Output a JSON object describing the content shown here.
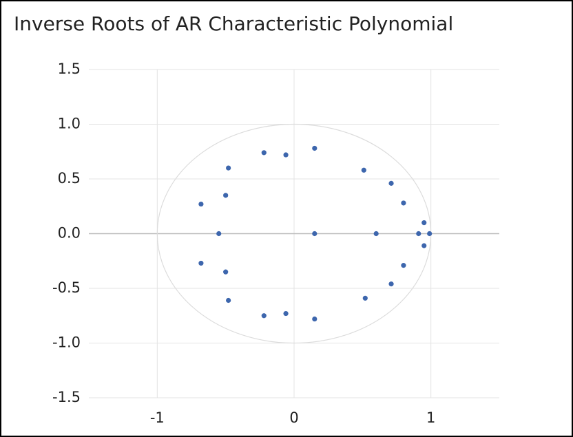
{
  "chart_data": {
    "type": "scatter",
    "title": "Inverse Roots of AR Characteristic Polynomial",
    "series": [
      {
        "color": "#3d66ad",
        "x": [
          0.15,
          -0.06,
          -0.22,
          -0.48,
          0.51,
          0.71,
          0.8,
          -0.68,
          -0.5,
          0.95,
          -0.55,
          0.15,
          0.6,
          0.91,
          0.99,
          0.95,
          0.8,
          0.71,
          0.52,
          0.15,
          -0.06,
          -0.22,
          -0.48,
          -0.5,
          -0.68
        ],
        "values": [
          0.78,
          0.72,
          0.74,
          0.6,
          0.58,
          0.46,
          0.28,
          0.27,
          0.35,
          0.1,
          0,
          0,
          0,
          0,
          0,
          -0.11,
          -0.29,
          -0.46,
          -0.59,
          -0.78,
          -0.73,
          -0.75,
          -0.61,
          -0.35,
          -0.27
        ]
      }
    ],
    "xlim": [
      -1.5,
      1.5
    ],
    "xticks": [
      -1,
      0,
      1
    ],
    "ylim": [
      -1.5,
      1.5
    ],
    "yticks": [
      1.5,
      {
        "value": 1,
        "label": "1.0"
      },
      0.5,
      {
        "value": 0,
        "label": "0.0"
      },
      -0.5,
      {
        "value": -1,
        "label": "-1.0"
      },
      -1.5
    ],
    "grid": true,
    "unit_circle": {
      "radius": 1
    }
  }
}
